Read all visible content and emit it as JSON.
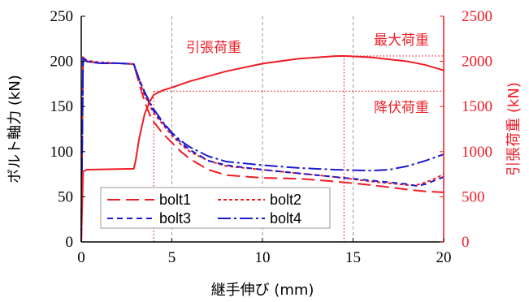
{
  "chart_data": {
    "type": "line",
    "xlabel": "継手伸び (mm)",
    "ylabel_left": "ボルト軸力 (kN)",
    "ylabel_right": "引張荷重 (kN)",
    "xlim": [
      0,
      20
    ],
    "ylim_left": [
      0,
      250
    ],
    "ylim_right": [
      0,
      2500
    ],
    "x_ticks": [
      "0",
      "5",
      "10",
      "15",
      "20"
    ],
    "y_ticks_left": [
      "0",
      "50",
      "100",
      "150",
      "200",
      "250"
    ],
    "y_ticks_right": [
      "0",
      "500",
      "1000",
      "1500",
      "2000",
      "2500"
    ],
    "grid": "vertical dashed at x = 5, 10, 15",
    "legend_position": "lower-left",
    "annotations": {
      "tension": "引張荷重",
      "max_load": "最大荷重",
      "yield_load": "降伏荷重"
    },
    "reference_lines": {
      "max_load": {
        "x": 14.5,
        "y_right": 2060
      },
      "yield_load": {
        "x": 4.0,
        "y_right": 1670
      }
    },
    "colors": {
      "red": "#ee1c25",
      "blue": "#1b1bd0",
      "grid": "#9a9a9a",
      "axis": "#000000"
    },
    "series": [
      {
        "name": "bolt1",
        "axis": "left",
        "color": "#ee1c25",
        "dash": "16,7",
        "x": [
          0,
          0.1,
          0.3,
          1,
          2,
          2.9,
          3.2,
          3.5,
          3.8,
          4,
          4.5,
          5,
          5.5,
          6,
          7,
          8,
          10,
          12,
          14,
          16,
          18,
          19,
          20
        ],
        "y": [
          0,
          205,
          200,
          198,
          198,
          197,
          175,
          155,
          140,
          133,
          120,
          110,
          100,
          92,
          80,
          74,
          71,
          70,
          67,
          63,
          58,
          56,
          55
        ]
      },
      {
        "name": "bolt2",
        "axis": "left",
        "color": "#ee1c25",
        "dash": "4,3",
        "x": [
          0,
          0.1,
          0.3,
          1,
          2,
          2.9,
          3.2,
          3.5,
          3.8,
          4,
          4.5,
          5,
          5.5,
          6,
          7,
          8,
          10,
          12,
          14,
          16,
          17,
          18,
          18.5,
          19,
          19.5,
          20
        ],
        "y": [
          0,
          205,
          201,
          199,
          198,
          197,
          178,
          162,
          150,
          143,
          130,
          118,
          108,
          100,
          90,
          84,
          80,
          76,
          72,
          67,
          65,
          63,
          63,
          66,
          70,
          75
        ]
      },
      {
        "name": "bolt3",
        "axis": "left",
        "color": "#1b1bd0",
        "dash": "7,5",
        "x": [
          0,
          0.1,
          0.3,
          1,
          2,
          2.9,
          3.2,
          3.5,
          3.8,
          4,
          4.5,
          5,
          5.5,
          6,
          7,
          8,
          10,
          12,
          14,
          16,
          18,
          18.5,
          19,
          19.5,
          20
        ],
        "y": [
          0,
          203,
          200,
          198,
          198,
          197,
          180,
          165,
          152,
          145,
          132,
          120,
          110,
          102,
          90,
          85,
          80,
          76,
          72,
          68,
          64,
          62,
          64,
          68,
          72
        ]
      },
      {
        "name": "bolt4",
        "axis": "left",
        "color": "#1b1bd0",
        "dash": "16,4,3,4",
        "x": [
          0,
          0.1,
          0.3,
          1,
          2,
          2.9,
          3.2,
          3.5,
          3.8,
          4,
          4.5,
          5,
          5.5,
          6,
          7,
          8,
          10,
          12,
          14,
          16,
          17,
          18,
          19,
          20
        ],
        "y": [
          0,
          204,
          200,
          198,
          198,
          197,
          180,
          166,
          154,
          147,
          133,
          121,
          112,
          105,
          95,
          89,
          85,
          82,
          80,
          79,
          80,
          84,
          90,
          97
        ]
      },
      {
        "name": "引張荷重",
        "axis": "right",
        "color": "#ee1c25",
        "dash": "",
        "x": [
          0,
          0.1,
          0.3,
          2.9,
          3.0,
          3.2,
          3.5,
          3.8,
          4,
          4.5,
          5,
          6,
          8,
          10,
          12,
          14,
          14.5,
          16,
          18,
          19,
          20
        ],
        "y": [
          0,
          780,
          800,
          810,
          900,
          1150,
          1420,
          1560,
          1630,
          1680,
          1710,
          1780,
          1890,
          1975,
          2030,
          2058,
          2060,
          2045,
          2000,
          1960,
          1900
        ]
      }
    ]
  }
}
